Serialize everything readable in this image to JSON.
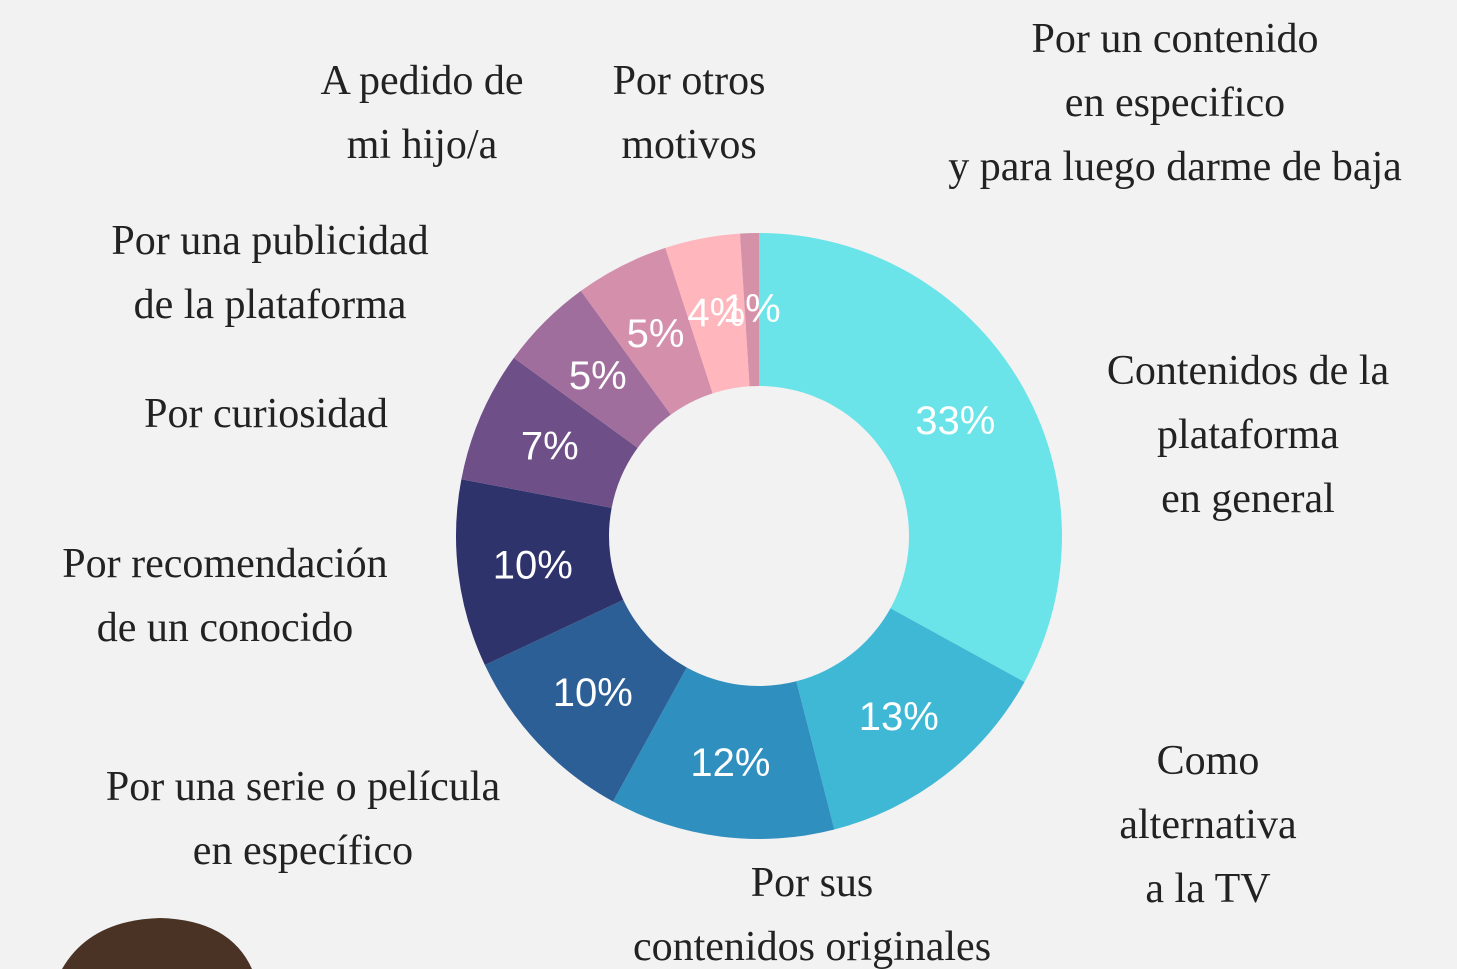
{
  "chart_data": {
    "type": "donut",
    "categories": [
      "Contenidos de la\nplataforma\nen general",
      "Como\nalternativa\na la TV",
      "Por sus\ncontenidos originales",
      "Por una serie o película\nen específico",
      "Por recomendación\nde un conocido",
      "Por curiosidad",
      "Por una publicidad\nde la plataforma",
      "A pedido de\nmi hijo/a",
      "Por otros\nmotivos",
      "Por un contenido\nen especifico\ny para luego darme de baja"
    ],
    "values": [
      33,
      13,
      12,
      10,
      10,
      7,
      5,
      5,
      4,
      1
    ],
    "value_labels": [
      "33%",
      "13%",
      "12%",
      "10%",
      "10%",
      "7%",
      "5%",
      "5%",
      "4%",
      "1%"
    ],
    "colors": [
      "#6ae4e9",
      "#3fb8d6",
      "#2f8fbf",
      "#2d5f97",
      "#2f336b",
      "#6e4f87",
      "#a06e9c",
      "#d48fab",
      "#ffb6bd",
      "#d491a8"
    ]
  }
}
